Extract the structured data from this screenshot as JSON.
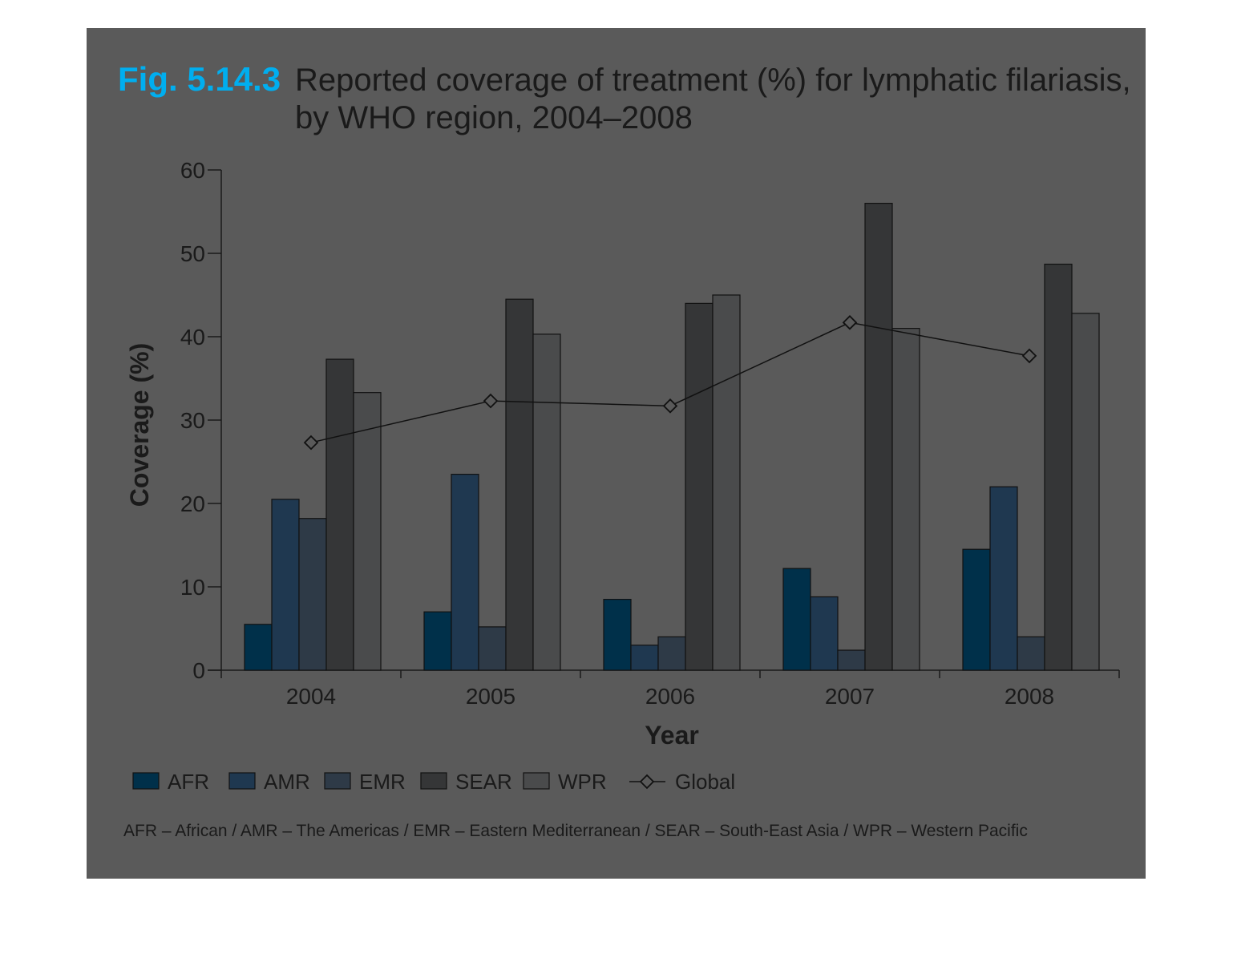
{
  "figure": {
    "number": "Fig. 5.14.3",
    "title_line1": "Reported coverage of treatment (%) for lymphatic filariasis,",
    "title_line2": "by WHO region, 2004–2008",
    "footnote": "AFR – African / AMR – The Americas / EMR – Eastern Mediterranean / SEAR – South-East Asia / WPR – Western Pacific"
  },
  "chart_data": {
    "type": "bar",
    "xlabel": "Year",
    "ylabel": "Coverage (%)",
    "ylim": [
      0,
      60
    ],
    "yticks": [
      "0",
      "10",
      "20",
      "30",
      "40",
      "50",
      "60"
    ],
    "categories": [
      "2004",
      "2005",
      "2006",
      "2007",
      "2008"
    ],
    "series": [
      {
        "name": "AFR",
        "color": "#00304a",
        "values": [
          5.5,
          7,
          8.5,
          12.2,
          14.5
        ]
      },
      {
        "name": "AMR",
        "color": "#1f3850",
        "values": [
          20.5,
          23.5,
          3,
          8.8,
          22
        ]
      },
      {
        "name": "EMR",
        "color": "#2e3a47",
        "values": [
          18.2,
          5.2,
          4,
          2.4,
          4
        ]
      },
      {
        "name": "SEAR",
        "color": "#353637",
        "values": [
          37.3,
          44.5,
          44,
          56,
          48.7
        ]
      },
      {
        "name": "WPR",
        "color": "#4a4b4c",
        "values": [
          33.3,
          40.3,
          45,
          41,
          42.8
        ]
      }
    ],
    "line": {
      "name": "Global",
      "values": [
        27.3,
        32.3,
        31.7,
        41.7,
        37.7
      ]
    },
    "grid": false,
    "legend_position": "bottom"
  }
}
